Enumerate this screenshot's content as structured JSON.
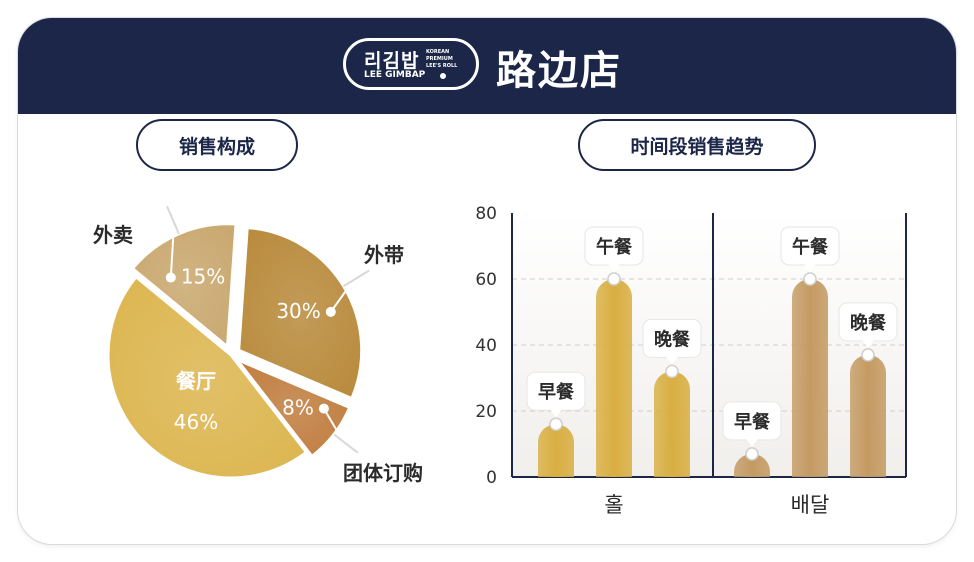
{
  "header": {
    "brand_korean": "리김밥",
    "brand_latin": "LEE GIMBAP",
    "brand_small": "KOREAN\nPREMIUM\nLEE'S ROLL",
    "title": "路边店"
  },
  "colors": {
    "header_bg": "#1b2649",
    "pill_border": "#1b2649",
    "slice_dinein": "#dcb54e",
    "slice_takeout": "#b8893a",
    "slice_group": "#c07c3e",
    "slice_delivery": "#c9a76e",
    "bar_gold": "#d9ae41",
    "bar_tan": "#c49a62"
  },
  "chart_data": [
    {
      "type": "pie",
      "title": "销售构成",
      "slices": [
        {
          "label": "外带",
          "value": 30,
          "display": "30%"
        },
        {
          "label": "团体订购",
          "value": 8,
          "display": "8%"
        },
        {
          "label": "餐厅",
          "value": 46,
          "display": "46%"
        },
        {
          "label": "外卖",
          "value": 15,
          "display": "15%"
        }
      ]
    },
    {
      "type": "bar",
      "title": "时间段销售趋势",
      "groups": [
        "홀",
        "배달"
      ],
      "series_labels": [
        "早餐",
        "午餐",
        "晚餐"
      ],
      "values": [
        [
          16,
          60,
          32
        ],
        [
          7,
          60,
          37
        ]
      ],
      "ylim": [
        0,
        80
      ],
      "yticks": [
        0,
        20,
        40,
        60,
        80
      ],
      "grid": true
    }
  ]
}
